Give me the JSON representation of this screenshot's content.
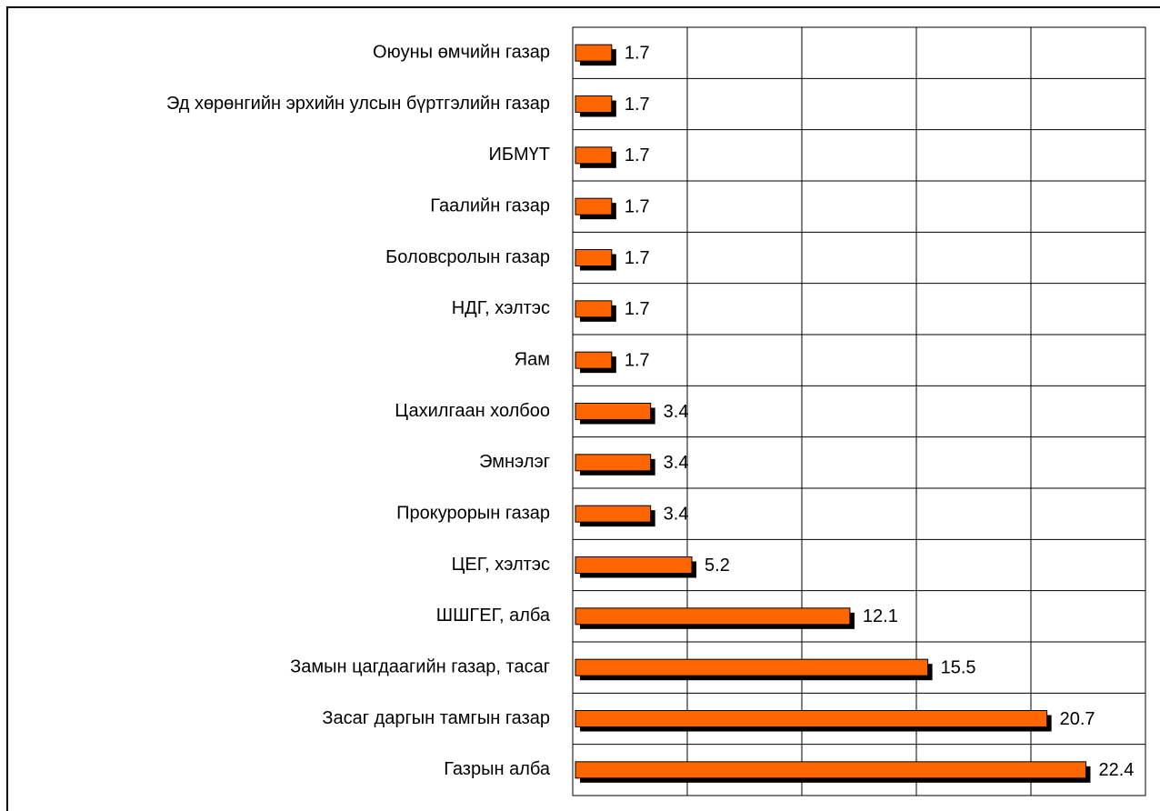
{
  "chart_data": {
    "type": "barh",
    "categories": [
      "Оюуны өмчийн газар",
      "Эд хөрөнгийн эрхийн улсын бүртгэлийн газар",
      "ИБМҮТ",
      "Гаалийн газар",
      "Боловсролын газар",
      "НДГ, хэлтэс",
      "Яам",
      "Цахилгаан холбоо",
      "Эмнэлэг",
      "Прокурорын газар",
      "ЦЕГ, хэлтэс",
      "ШШГЕГ, алба",
      "Замын цагдаагийн газар, тасаг",
      "Засаг даргын тамгын газар",
      "Газрын алба"
    ],
    "values": [
      1.7,
      1.7,
      1.7,
      1.7,
      1.7,
      1.7,
      1.7,
      3.4,
      3.4,
      3.4,
      5.2,
      12.1,
      15.5,
      20.7,
      22.4
    ],
    "color": "#ff6600",
    "xlim": [
      0,
      25
    ],
    "xticks": [
      0,
      5,
      10,
      15,
      20,
      25
    ],
    "grid": true
  }
}
